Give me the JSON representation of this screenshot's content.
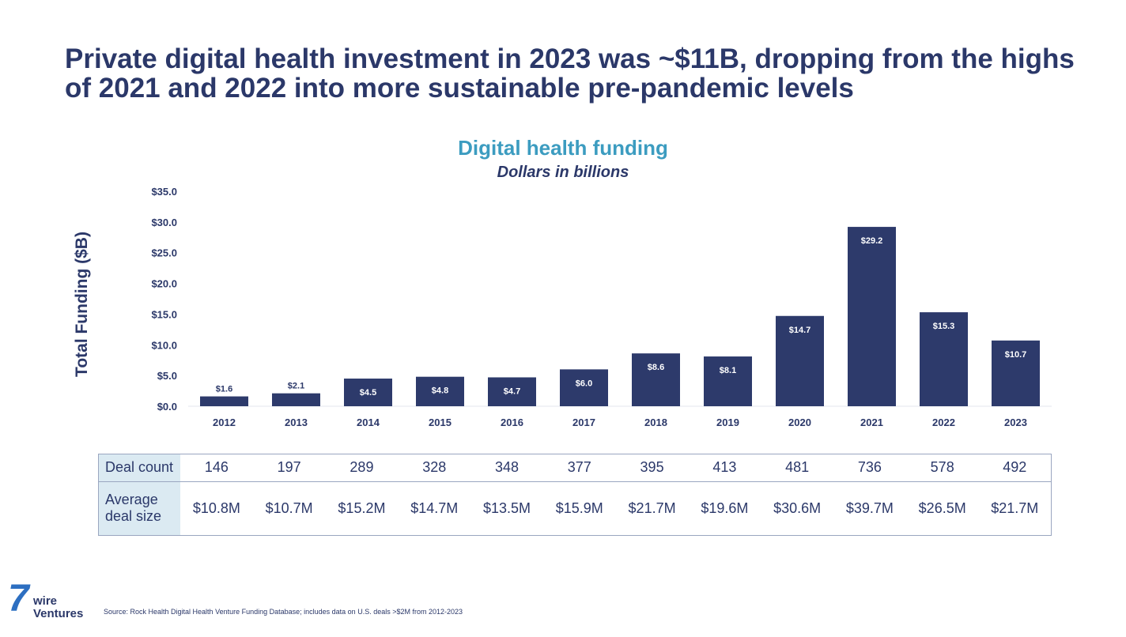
{
  "headline": "Private digital health investment in 2023 was ~$11B, dropping from the highs of 2021 and 2022 into more sustainable pre-pandemic levels",
  "colors": {
    "bar": "#2d3a6b",
    "title_accent": "#3c9cc0",
    "text": "#2b3869",
    "table_header_bg": "#dbeaf2",
    "logo_accent": "#2d6fc1"
  },
  "chart_data": {
    "type": "bar",
    "title": "Digital health funding",
    "subtitle": "Dollars in billions",
    "ylabel": "Total Funding ($B)",
    "xlabel": "",
    "ylim": [
      0,
      35
    ],
    "yticks": [
      "$0.0",
      "$5.0",
      "$10.0",
      "$15.0",
      "$20.0",
      "$25.0",
      "$30.0",
      "$35.0"
    ],
    "categories": [
      "2012",
      "2013",
      "2014",
      "2015",
      "2016",
      "2017",
      "2018",
      "2019",
      "2020",
      "2021",
      "2022",
      "2023"
    ],
    "values": [
      1.6,
      2.1,
      4.5,
      4.8,
      4.7,
      6.0,
      8.6,
      8.1,
      14.7,
      29.2,
      15.3,
      10.7
    ],
    "data_labels": [
      "$1.6",
      "$2.1",
      "$4.5",
      "$4.8",
      "$4.7",
      "$6.0",
      "$8.6",
      "$8.1",
      "$14.7",
      "$29.2",
      "$15.3",
      "$10.7"
    ],
    "grid": false,
    "legend": "none"
  },
  "table": {
    "deal_count_label": "Deal count",
    "deal_count": [
      "146",
      "197",
      "289",
      "328",
      "348",
      "377",
      "395",
      "413",
      "481",
      "736",
      "578",
      "492"
    ],
    "avg_deal_label": "Average deal size",
    "avg_deal_size": [
      "$10.8M",
      "$10.7M",
      "$15.2M",
      "$14.7M",
      "$13.5M",
      "$15.9M",
      "$21.7M",
      "$19.6M",
      "$30.6M",
      "$39.7M",
      "$26.5M",
      "$21.7M"
    ]
  },
  "logo": {
    "seven": "7",
    "wire": "wire",
    "ventures": "Ventures"
  },
  "source": "Source: Rock Health Digital Health Venture Funding Database; includes data on U.S. deals >$2M from 2012-2023"
}
